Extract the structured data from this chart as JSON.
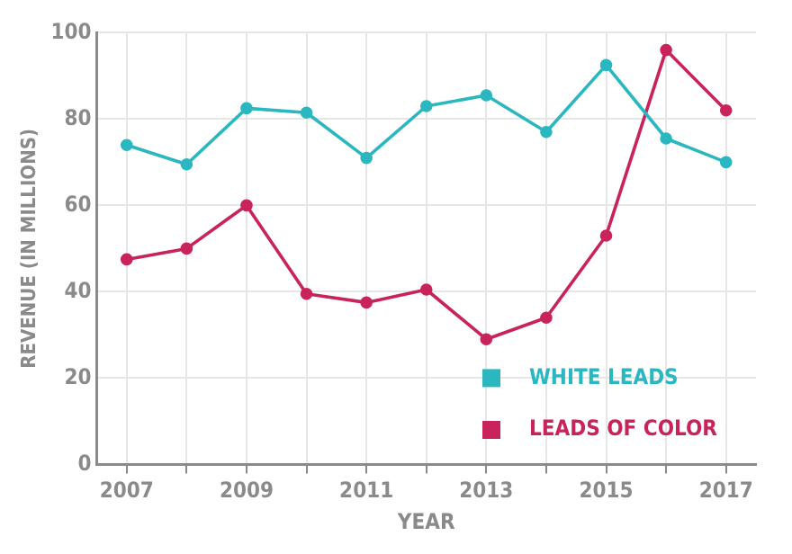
{
  "chart_data": {
    "type": "line",
    "xlabel": "YEAR",
    "ylabel": "REVENUE (IN MILLIONS)",
    "x": [
      2007,
      2008,
      2009,
      2010,
      2011,
      2012,
      2013,
      2014,
      2015,
      2016,
      2017
    ],
    "series": [
      {
        "name": "WHITE LEADS",
        "color": "#2bb7bf",
        "values": [
          74,
          69.5,
          82.5,
          81.5,
          71,
          83,
          85.5,
          77,
          92.5,
          75.5,
          70
        ]
      },
      {
        "name": "LEADS OF COLOR",
        "color": "#c8235c",
        "values": [
          47.5,
          50,
          60,
          39.5,
          37.5,
          40.5,
          29,
          34,
          53,
          96,
          82
        ]
      }
    ],
    "xlim": [
      2006.5,
      2017.5
    ],
    "xticks": [
      2007,
      {
        "value": 2008,
        "label": null
      },
      2009,
      {
        "value": 2010,
        "label": null
      },
      2011,
      {
        "value": 2012,
        "label": null
      },
      2013,
      {
        "value": 2014,
        "label": null
      },
      2015,
      {
        "value": 2016,
        "label": null
      },
      2017
    ],
    "ylim": [
      0,
      100
    ],
    "yticks": [
      0,
      20,
      40,
      60,
      80,
      100
    ],
    "grid": true,
    "legend": "bottom right",
    "marker": "circle",
    "line_style": "solid"
  }
}
